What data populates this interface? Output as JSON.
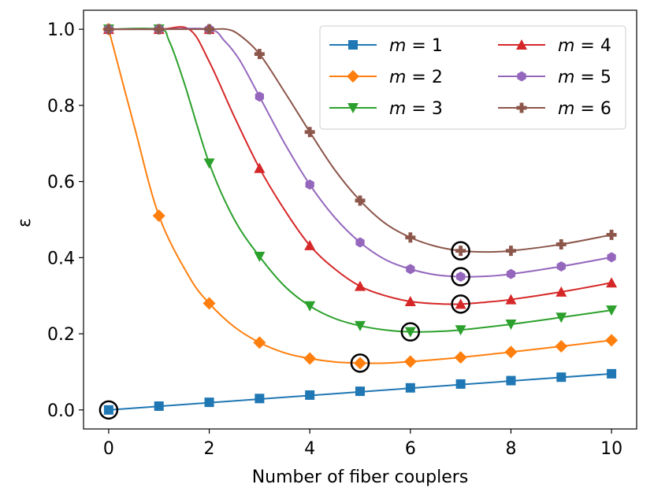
{
  "chart_data": {
    "type": "line",
    "title": "",
    "xlabel": "Number of fiber couplers",
    "ylabel": "ε",
    "xlim": [
      -0.5,
      10.5
    ],
    "ylim": [
      -0.05,
      1.05
    ],
    "xticks": [
      0,
      2,
      4,
      6,
      8,
      10
    ],
    "yticks": [
      0.0,
      0.2,
      0.4,
      0.6,
      0.8,
      1.0
    ],
    "xtick_labels": [
      "0",
      "2",
      "4",
      "6",
      "8",
      "10"
    ],
    "ytick_labels": [
      "0.0",
      "0.2",
      "0.4",
      "0.6",
      "0.8",
      "1.0"
    ],
    "grid": false,
    "legend_position": "top-right",
    "x": [
      0,
      1,
      2,
      3,
      4,
      5,
      6,
      7,
      8,
      9,
      10
    ],
    "series": [
      {
        "name": "m = 1",
        "var": "m",
        "eq": " = 1",
        "color": "#1f77b4",
        "marker": "square",
        "values": [
          0.0,
          0.01,
          0.02,
          0.03,
          0.039,
          0.049,
          0.058,
          0.068,
          0.077,
          0.086,
          0.095
        ],
        "curve": [
          [
            0,
            0.0
          ],
          [
            10,
            0.095
          ]
        ],
        "optimum": [
          0,
          0.0
        ]
      },
      {
        "name": "m = 2",
        "var": "m",
        "eq": " = 2",
        "color": "#ff7f0e",
        "marker": "diamond",
        "values": [
          1.0,
          0.51,
          0.28,
          0.177,
          0.135,
          0.123,
          0.127,
          0.138,
          0.152,
          0.167,
          0.183
        ],
        "curve": [
          [
            0,
            1.0
          ],
          [
            0.5,
            0.75
          ],
          [
            1,
            0.51
          ],
          [
            1.6,
            0.35
          ],
          [
            2,
            0.28
          ],
          [
            2.5,
            0.218
          ],
          [
            3,
            0.177
          ],
          [
            3.5,
            0.15
          ],
          [
            4,
            0.135
          ],
          [
            4.5,
            0.126
          ],
          [
            5,
            0.123
          ],
          [
            5.5,
            0.123
          ],
          [
            6,
            0.127
          ],
          [
            7,
            0.138
          ],
          [
            8,
            0.152
          ],
          [
            9,
            0.167
          ],
          [
            10,
            0.183
          ]
        ],
        "optimum": [
          5,
          0.123
        ]
      },
      {
        "name": "m = 3",
        "var": "m",
        "eq": " = 3",
        "color": "#2ca02c",
        "marker": "triangle-down",
        "values": [
          1.0,
          1.0,
          0.648,
          0.403,
          0.273,
          0.221,
          0.205,
          0.21,
          0.225,
          0.243,
          0.262
        ],
        "curve": [
          [
            0,
            1.0
          ],
          [
            1,
            1.0
          ],
          [
            1.2,
            0.97
          ],
          [
            1.5,
            0.86
          ],
          [
            2,
            0.648
          ],
          [
            2.5,
            0.5
          ],
          [
            3,
            0.403
          ],
          [
            3.5,
            0.325
          ],
          [
            4,
            0.273
          ],
          [
            4.5,
            0.24
          ],
          [
            5,
            0.221
          ],
          [
            5.5,
            0.21
          ],
          [
            6,
            0.205
          ],
          [
            6.5,
            0.206
          ],
          [
            7,
            0.21
          ],
          [
            8,
            0.225
          ],
          [
            9,
            0.243
          ],
          [
            10,
            0.262
          ]
        ],
        "optimum": [
          6,
          0.205
        ]
      },
      {
        "name": "m = 4",
        "var": "m",
        "eq": " = 4",
        "color": "#d62728",
        "marker": "triangle-up",
        "values": [
          1.0,
          1.0,
          1.0,
          0.635,
          0.432,
          0.325,
          0.285,
          0.278,
          0.29,
          0.31,
          0.334
        ],
        "curve": [
          [
            0,
            1.0
          ],
          [
            1,
            1.0
          ],
          [
            1.6,
            1.0
          ],
          [
            2,
            0.915
          ],
          [
            2.5,
            0.77
          ],
          [
            3,
            0.635
          ],
          [
            3.5,
            0.525
          ],
          [
            4,
            0.432
          ],
          [
            4.5,
            0.37
          ],
          [
            5,
            0.325
          ],
          [
            5.5,
            0.3
          ],
          [
            6,
            0.285
          ],
          [
            6.5,
            0.279
          ],
          [
            7,
            0.278
          ],
          [
            7.5,
            0.283
          ],
          [
            8,
            0.29
          ],
          [
            9,
            0.31
          ],
          [
            10,
            0.334
          ]
        ],
        "optimum": [
          7,
          0.278
        ]
      },
      {
        "name": "m = 5",
        "var": "m",
        "eq": " = 5",
        "color": "#9467bd",
        "marker": "hexagon",
        "values": [
          1.0,
          1.0,
          1.0,
          0.823,
          0.592,
          0.44,
          0.37,
          0.35,
          0.357,
          0.377,
          0.401
        ],
        "curve": [
          [
            0,
            1.0
          ],
          [
            1,
            1.0
          ],
          [
            2,
            1.0
          ],
          [
            2.3,
            0.97
          ],
          [
            2.6,
            0.92
          ],
          [
            3,
            0.823
          ],
          [
            3.5,
            0.7
          ],
          [
            4,
            0.592
          ],
          [
            4.5,
            0.505
          ],
          [
            5,
            0.44
          ],
          [
            5.5,
            0.395
          ],
          [
            6,
            0.37
          ],
          [
            6.5,
            0.355
          ],
          [
            7,
            0.35
          ],
          [
            7.5,
            0.351
          ],
          [
            8,
            0.357
          ],
          [
            9,
            0.377
          ],
          [
            10,
            0.401
          ]
        ],
        "optimum": [
          7,
          0.35
        ]
      },
      {
        "name": "m = 6",
        "var": "m",
        "eq": " = 6",
        "color": "#8c564b",
        "marker": "plus",
        "values": [
          1.0,
          1.0,
          1.0,
          0.935,
          0.73,
          0.55,
          0.453,
          0.418,
          0.418,
          0.435,
          0.46
        ],
        "curve": [
          [
            0,
            1.0
          ],
          [
            1,
            1.0
          ],
          [
            2,
            1.0
          ],
          [
            2.35,
            1.0
          ],
          [
            2.6,
            0.985
          ],
          [
            3,
            0.935
          ],
          [
            3.5,
            0.835
          ],
          [
            4,
            0.73
          ],
          [
            4.5,
            0.63
          ],
          [
            5,
            0.55
          ],
          [
            5.5,
            0.49
          ],
          [
            6,
            0.453
          ],
          [
            6.5,
            0.43
          ],
          [
            7,
            0.418
          ],
          [
            7.5,
            0.415
          ],
          [
            8,
            0.418
          ],
          [
            9,
            0.435
          ],
          [
            10,
            0.46
          ]
        ],
        "optimum": [
          7,
          0.418
        ]
      }
    ]
  }
}
